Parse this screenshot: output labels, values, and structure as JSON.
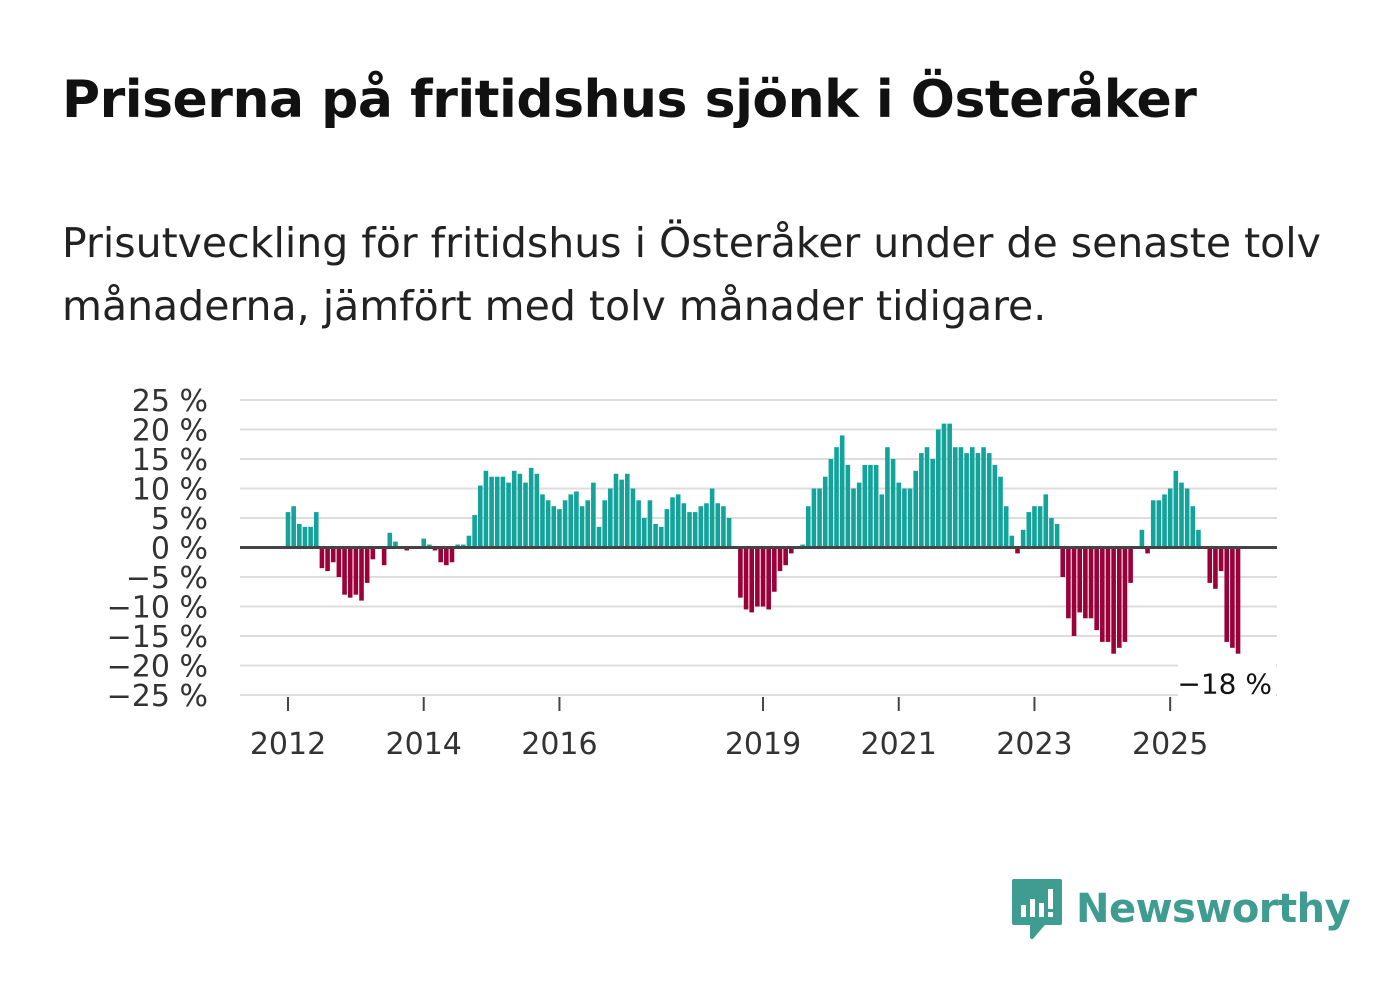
{
  "title": "Priserna på fritidshus sjönk i Österåker",
  "subtitle": "Prisutveckling för fritidshus i Österåker under de senaste tolv månaderna, jämfört med tolv månader tidigare.",
  "brand": {
    "name": "Newsworthy",
    "icon": "newsworthy-logo-icon",
    "color": "#3e9c91"
  },
  "colors": {
    "positive": "#12a39a",
    "negative": "#9c0039",
    "grid": "#dddddd",
    "zero": "#444444"
  },
  "chart_data": {
    "type": "bar",
    "title": "Priserna på fritidshus sjönk i Österåker",
    "xlabel": "",
    "ylabel": "",
    "ylim": [
      -25,
      25
    ],
    "yticks": [
      25,
      20,
      15,
      10,
      5,
      0,
      -5,
      -10,
      -15,
      -20,
      -25
    ],
    "ytick_labels": [
      "25 %",
      "20 %",
      "15 %",
      "10 %",
      "5 %",
      "0 %",
      "−5 %",
      "−10 %",
      "−15 %",
      "−20 %",
      "−25 %"
    ],
    "xticks": [
      {
        "label": "2012",
        "index": 0
      },
      {
        "label": "2014",
        "index": 24
      },
      {
        "label": "2016",
        "index": 48
      },
      {
        "label": "2019",
        "index": 84
      },
      {
        "label": "2021",
        "index": 108
      },
      {
        "label": "2023",
        "index": 132
      },
      {
        "label": "2025",
        "index": 156
      }
    ],
    "start": "2012-01",
    "grid": true,
    "legend": "none",
    "annotation": {
      "label": "−18 %",
      "value": -18
    },
    "values": [
      6,
      7,
      4,
      3.5,
      3.5,
      6,
      -3.5,
      -4,
      -2.5,
      -5,
      -8,
      -8.5,
      -8,
      -9,
      -6,
      -2,
      0,
      -3,
      2.5,
      1,
      0,
      -0.5,
      0,
      0,
      1.5,
      0.5,
      -0.5,
      -2.5,
      -3,
      -2.5,
      0.5,
      0.5,
      2,
      5.5,
      10.5,
      13,
      12,
      12,
      12,
      11,
      13,
      12.5,
      11,
      13.5,
      12.5,
      9,
      8,
      7,
      6.5,
      8,
      9,
      9.5,
      7,
      8,
      11,
      3.5,
      8,
      10,
      12.5,
      11.5,
      12.5,
      10,
      8,
      5,
      8,
      4,
      3.5,
      6.5,
      8.5,
      9,
      7.5,
      6,
      6,
      7,
      7.5,
      10,
      7.5,
      7,
      5,
      0,
      -8.5,
      -10.5,
      -11,
      -10,
      -10,
      -10.5,
      -7.5,
      -4,
      -3,
      -1,
      0,
      0.5,
      7,
      10,
      10,
      12,
      15,
      17,
      19,
      14,
      10,
      11,
      14,
      14,
      14,
      9,
      17,
      15,
      11,
      10,
      10,
      13,
      16,
      17,
      15,
      20,
      21,
      21,
      17,
      17,
      16,
      17,
      16,
      17,
      16,
      14,
      12,
      7,
      2,
      -1,
      3,
      6,
      7,
      7,
      9,
      5,
      4,
      -5,
      -12,
      -15,
      -11,
      -12,
      -12,
      -14,
      -16,
      -16,
      -18,
      -17,
      -16,
      -6,
      0,
      3,
      -1,
      8,
      8,
      9,
      10,
      13,
      11,
      10,
      7,
      3,
      0,
      -6,
      -7,
      -4,
      -16,
      -17,
      -18
    ]
  }
}
